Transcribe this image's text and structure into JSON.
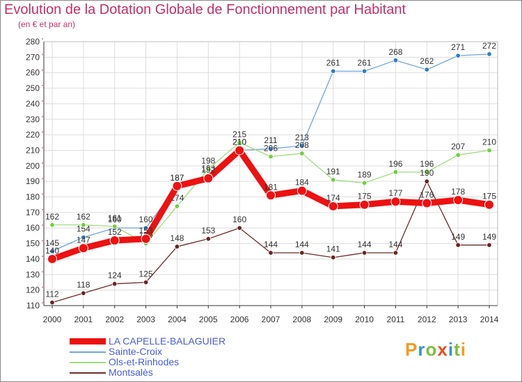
{
  "header": {
    "title": "Evolution de la Dotation Globale de Fonctionnement par Habitant",
    "subtitle": "(en € et par an)"
  },
  "logo": {
    "letters": [
      "P",
      "r",
      "o",
      "x",
      "i",
      "t",
      "i"
    ],
    "colors": [
      "#f39c1e",
      "#3a8fd8",
      "#7cbf3c",
      "#e94e1b",
      "#3a8fd8",
      "#7cbf3c",
      "#f39c1e"
    ]
  },
  "colors": {
    "title": "#c0306a",
    "axis": "#333333",
    "grid": "#dddddd",
    "tick_marker": "#e02020",
    "value_label": "#333333"
  },
  "chart_data": {
    "type": "line",
    "x": [
      "2000",
      "2001",
      "2002",
      "2003",
      "2004",
      "2005",
      "2006",
      "2007",
      "2008",
      "2009",
      "2010",
      "2011",
      "2012",
      "2013",
      "2014"
    ],
    "ylim": [
      110,
      280
    ],
    "yticks": [
      110,
      120,
      130,
      140,
      150,
      160,
      170,
      180,
      190,
      200,
      210,
      220,
      230,
      240,
      250,
      260,
      270,
      280
    ],
    "grid": true,
    "legend": "bottom-left",
    "series": [
      {
        "name": "LA CAPELLE-BALAGUIER",
        "values": [
          140,
          147,
          152,
          153,
          187,
          192,
          210,
          181,
          184,
          174,
          175,
          177,
          176,
          178,
          175
        ],
        "color": "#ee1111",
        "marker": "#ee1111",
        "style": "bold"
      },
      {
        "name": "Sainte-Croix",
        "values": [
          145,
          154,
          160,
          160,
          187,
          193,
          210,
          211,
          213,
          261,
          261,
          268,
          262,
          271,
          272
        ],
        "color": "#6fa6d6",
        "marker": "#2f7ec4",
        "style": "normal"
      },
      {
        "name": "Ols-et-Rinhodes",
        "values": [
          162,
          162,
          161,
          150,
          174,
          198,
          215,
          206,
          208,
          191,
          189,
          196,
          196,
          207,
          210
        ],
        "color": "#9fdc7c",
        "marker": "#74cc40",
        "style": "normal"
      },
      {
        "name": "Montsalès",
        "values": [
          112,
          118,
          124,
          125,
          148,
          153,
          160,
          144,
          144,
          141,
          144,
          144,
          190,
          149,
          149
        ],
        "color": "#6b2a2a",
        "marker": "#6b2424",
        "style": "normal"
      }
    ]
  }
}
